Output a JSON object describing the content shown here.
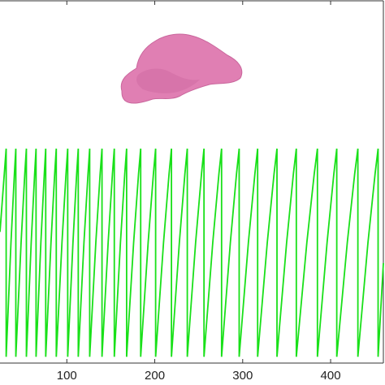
{
  "chart_data": {
    "type": "line",
    "xlim": [
      24,
      460
    ],
    "ylim": [
      -0.03,
      1.71
    ],
    "xticks": [
      100,
      200,
      300,
      400
    ],
    "series": [
      {
        "color": "#19e019",
        "x": [
          24,
          31,
          31,
          36.5,
          40.4,
          42,
          42,
          48,
          52.2,
          54,
          54,
          59.5,
          63.4,
          65,
          65,
          70.5,
          74.4,
          76,
          76,
          82,
          86.2,
          88,
          88,
          94.5,
          99.1,
          101,
          101,
          107,
          111.2,
          113,
          113,
          119.5,
          124.1,
          126,
          126,
          133,
          137.9,
          140,
          140,
          147,
          151.9,
          154,
          154,
          161,
          165.9,
          168,
          168,
          176,
          181.6,
          184,
          184,
          192.5,
          198.5,
          201,
          201,
          210,
          216.3,
          219,
          219,
          228,
          234.3,
          237,
          237,
          246.5,
          253.2,
          256,
          256,
          266,
          273,
          276,
          276,
          286,
          293,
          296,
          296,
          306.5,
          313.9,
          317,
          317,
          328,
          335.7,
          339,
          339,
          350,
          357.7,
          361,
          361,
          373,
          381.4,
          385,
          385,
          396,
          403.7,
          407,
          407,
          419,
          427.4,
          431,
          431,
          442.5,
          450.6,
          454,
          454,
          460
        ],
        "values": [
          0.6,
          1,
          0,
          0.55,
          0.88,
          1,
          0,
          0.55,
          0.88,
          1,
          0,
          0.55,
          0.88,
          1,
          0,
          0.55,
          0.88,
          1,
          0,
          0.55,
          0.88,
          1,
          0,
          0.55,
          0.88,
          1,
          0,
          0.55,
          0.88,
          1,
          0,
          0.55,
          0.88,
          1,
          0,
          0.55,
          0.88,
          1,
          0,
          0.55,
          0.88,
          1,
          0,
          0.55,
          0.88,
          1,
          0,
          0.55,
          0.88,
          1,
          0,
          0.55,
          0.88,
          1,
          0,
          0.55,
          0.88,
          1,
          0,
          0.55,
          0.88,
          1,
          0,
          0.55,
          0.88,
          1,
          0,
          0.55,
          0.88,
          1,
          0,
          0.55,
          0.88,
          1,
          0,
          0.55,
          0.88,
          1,
          0,
          0.55,
          0.88,
          1,
          0,
          0.55,
          0.88,
          1,
          0,
          0.55,
          0.88,
          1,
          0,
          0.55,
          0.88,
          1,
          0,
          0.55,
          0.88,
          1,
          0,
          0.55,
          0.88,
          1,
          0,
          0.45
        ]
      }
    ]
  }
}
